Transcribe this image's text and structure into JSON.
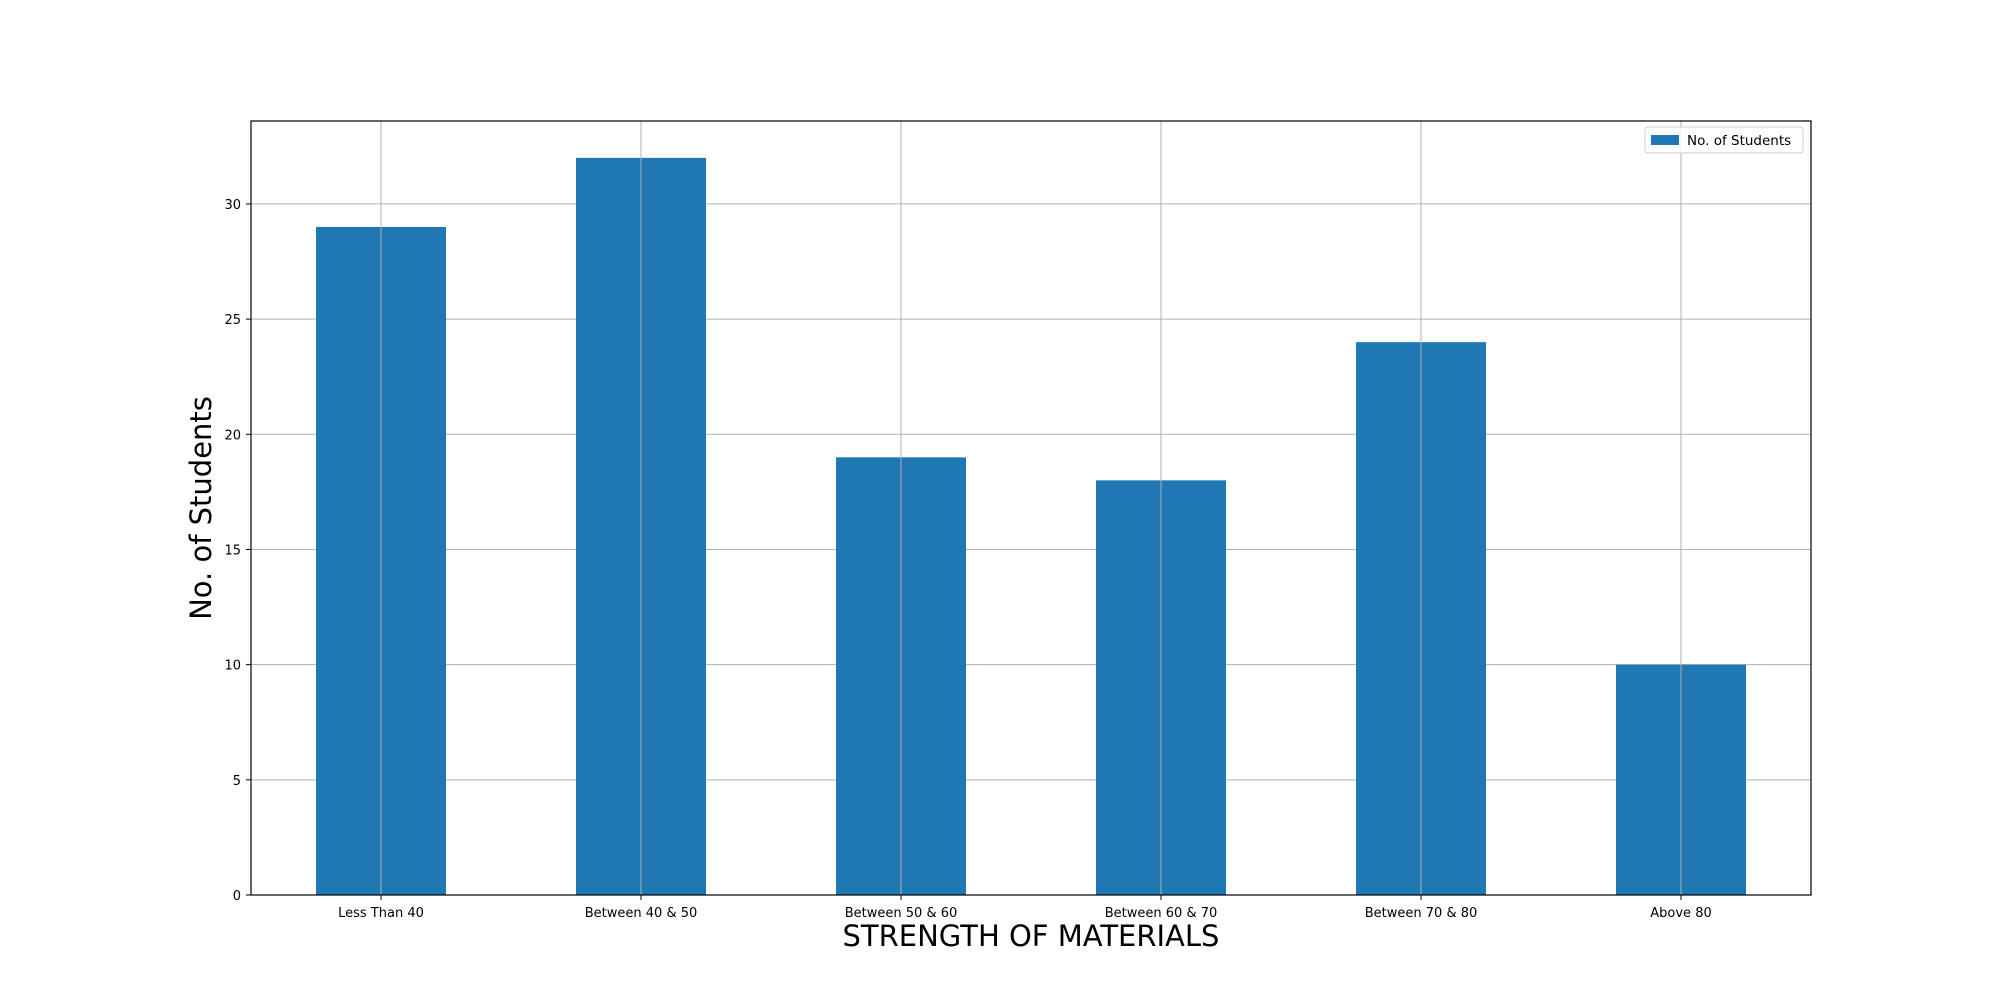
{
  "chart_data": {
    "type": "bar",
    "title": "",
    "xlabel": "STRENGTH OF MATERIALS",
    "ylabel": "No. of Students",
    "categories": [
      "Less Than 40",
      "Between 40 & 50",
      "Between 50 & 60",
      "Between 60 & 70",
      "Between 70 & 80",
      "Above 80"
    ],
    "series": [
      {
        "name": "No. of Students",
        "values": [
          29,
          32,
          19,
          18,
          24,
          10
        ],
        "color": "#1f77b4"
      }
    ],
    "ylim": [
      0,
      33.6
    ],
    "yticks": [
      0,
      5,
      10,
      15,
      20,
      25,
      30
    ],
    "grid": true,
    "legend_position": "top-right"
  }
}
